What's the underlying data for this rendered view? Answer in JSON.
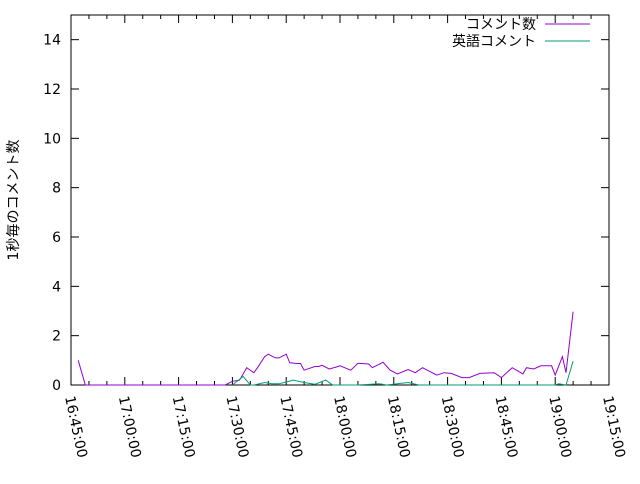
{
  "chart_data": {
    "type": "line",
    "title": "",
    "xlabel": "",
    "ylabel": "1秒毎のコメント数",
    "xlim": [
      "16:45:00",
      "19:15:00"
    ],
    "ylim": [
      0,
      15
    ],
    "x_ticks": [
      "16:45:00",
      "17:00:00",
      "17:15:00",
      "17:30:00",
      "17:45:00",
      "18:00:00",
      "18:15:00",
      "18:30:00",
      "18:45:00",
      "19:00:00",
      "19:15:00"
    ],
    "y_ticks": [
      "0",
      "2",
      "4",
      "6",
      "8",
      "10",
      "12",
      "14"
    ],
    "grid": false,
    "legend_position": "top-right",
    "series": [
      {
        "name": "コメント数",
        "color": "#9400d3",
        "points": [
          [
            "16:47",
            1.0
          ],
          [
            "16:49",
            0
          ],
          [
            "17:28",
            0
          ],
          [
            "17:30",
            0.15
          ],
          [
            "17:32",
            0.2
          ],
          [
            "17:34",
            0.7
          ],
          [
            "17:36",
            0.5
          ],
          [
            "17:37",
            0.7
          ],
          [
            "17:39",
            1.15
          ],
          [
            "17:40",
            1.25
          ],
          [
            "17:42",
            1.1
          ],
          [
            "17:43",
            1.1
          ],
          [
            "17:45",
            1.25
          ],
          [
            "17:46",
            0.9
          ],
          [
            "17:48",
            0.87
          ],
          [
            "17:49",
            0.87
          ],
          [
            "17:50",
            0.6
          ],
          [
            "17:53",
            0.75
          ],
          [
            "17:54",
            0.75
          ],
          [
            "17:55",
            0.8
          ],
          [
            "17:57",
            0.65
          ],
          [
            "17:59",
            0.73
          ],
          [
            "18:00",
            0.78
          ],
          [
            "18:03",
            0.6
          ],
          [
            "18:05",
            0.88
          ],
          [
            "18:08",
            0.85
          ],
          [
            "18:09",
            0.7
          ],
          [
            "18:12",
            0.92
          ],
          [
            "18:14",
            0.6
          ],
          [
            "18:16",
            0.45
          ],
          [
            "18:19",
            0.63
          ],
          [
            "18:21",
            0.5
          ],
          [
            "18:23",
            0.7
          ],
          [
            "18:25",
            0.55
          ],
          [
            "18:27",
            0.4
          ],
          [
            "18:29",
            0.5
          ],
          [
            "18:31",
            0.47
          ],
          [
            "18:34",
            0.3
          ],
          [
            "18:36",
            0.3
          ],
          [
            "18:39",
            0.47
          ],
          [
            "18:43",
            0.5
          ],
          [
            "18:45",
            0.3
          ],
          [
            "18:48",
            0.7
          ],
          [
            "18:51",
            0.45
          ],
          [
            "18:52",
            0.7
          ],
          [
            "18:54",
            0.65
          ],
          [
            "18:56",
            0.78
          ],
          [
            "18:59",
            0.78
          ],
          [
            "19:00",
            0.4
          ],
          [
            "19:02",
            1.15
          ],
          [
            "19:03",
            0.5
          ],
          [
            "19:05",
            2.97
          ]
        ]
      },
      {
        "name": "英語コメント",
        "color": "#009e73",
        "points": [
          [
            "17:30",
            0
          ],
          [
            "17:33",
            0.35
          ],
          [
            "17:35",
            0
          ],
          [
            "17:36",
            0
          ],
          [
            "17:39",
            0.1
          ],
          [
            "17:41",
            0.05
          ],
          [
            "17:43",
            0.05
          ],
          [
            "17:45",
            0.12
          ],
          [
            "17:47",
            0.2
          ],
          [
            "17:50",
            0.1
          ],
          [
            "17:53",
            0.03
          ],
          [
            "17:56",
            0.2
          ],
          [
            "17:58",
            0
          ],
          [
            "18:05",
            0
          ],
          [
            "18:11",
            0.05
          ],
          [
            "18:13",
            0
          ],
          [
            "18:19",
            0.1
          ],
          [
            "18:22",
            0
          ],
          [
            "19:00",
            0
          ],
          [
            "19:01",
            0.05
          ],
          [
            "19:03",
            0
          ],
          [
            "19:05",
            0.97
          ]
        ]
      }
    ]
  }
}
